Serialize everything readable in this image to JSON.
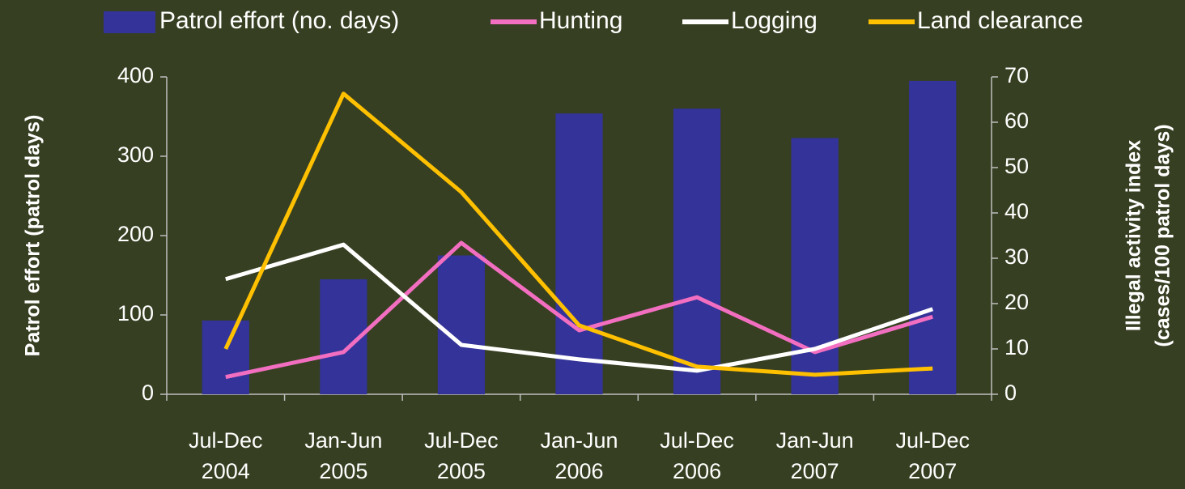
{
  "chart_data": {
    "type": "bar-line",
    "categories": [
      "Jul-Dec 2004",
      "Jan-Jun 2005",
      "Jul-Dec 2005",
      "Jan-Jun 2006",
      "Jul-Dec 2006",
      "Jan-Jun 2007",
      "Jul-Dec 2007"
    ],
    "ylabel": "Patrol effort (patrol days)",
    "y2label": [
      "Illegal activity index",
      "(cases/100 patrol days)"
    ],
    "ylim": [
      0,
      400
    ],
    "yticks": [
      0,
      100,
      200,
      300,
      400
    ],
    "y2lim": [
      0,
      70
    ],
    "y2ticks": [
      0,
      10,
      20,
      30,
      40,
      50,
      60,
      70
    ],
    "series": [
      {
        "name": "Patrol effort (no. days)",
        "type": "bar",
        "color": "#333399",
        "values": [
          93,
          145,
          175,
          354,
          360,
          323,
          395
        ]
      },
      {
        "name": "Hunting",
        "type": "line",
        "axis": "y2",
        "color": "#f26ec0",
        "values": [
          3.8,
          9.3,
          33.4,
          14.1,
          21.4,
          9.3,
          17.1
        ]
      },
      {
        "name": "Logging",
        "type": "line",
        "axis": "y2",
        "color": "#ffffff",
        "values": [
          25.4,
          33,
          10.9,
          7.7,
          5.2,
          10,
          18.8
        ]
      },
      {
        "name": "Land clearance",
        "type": "line",
        "axis": "y2",
        "color": "#ffc000",
        "values": [
          10,
          66.3,
          44.6,
          15.2,
          6.1,
          4.3,
          5.7
        ]
      }
    ]
  }
}
